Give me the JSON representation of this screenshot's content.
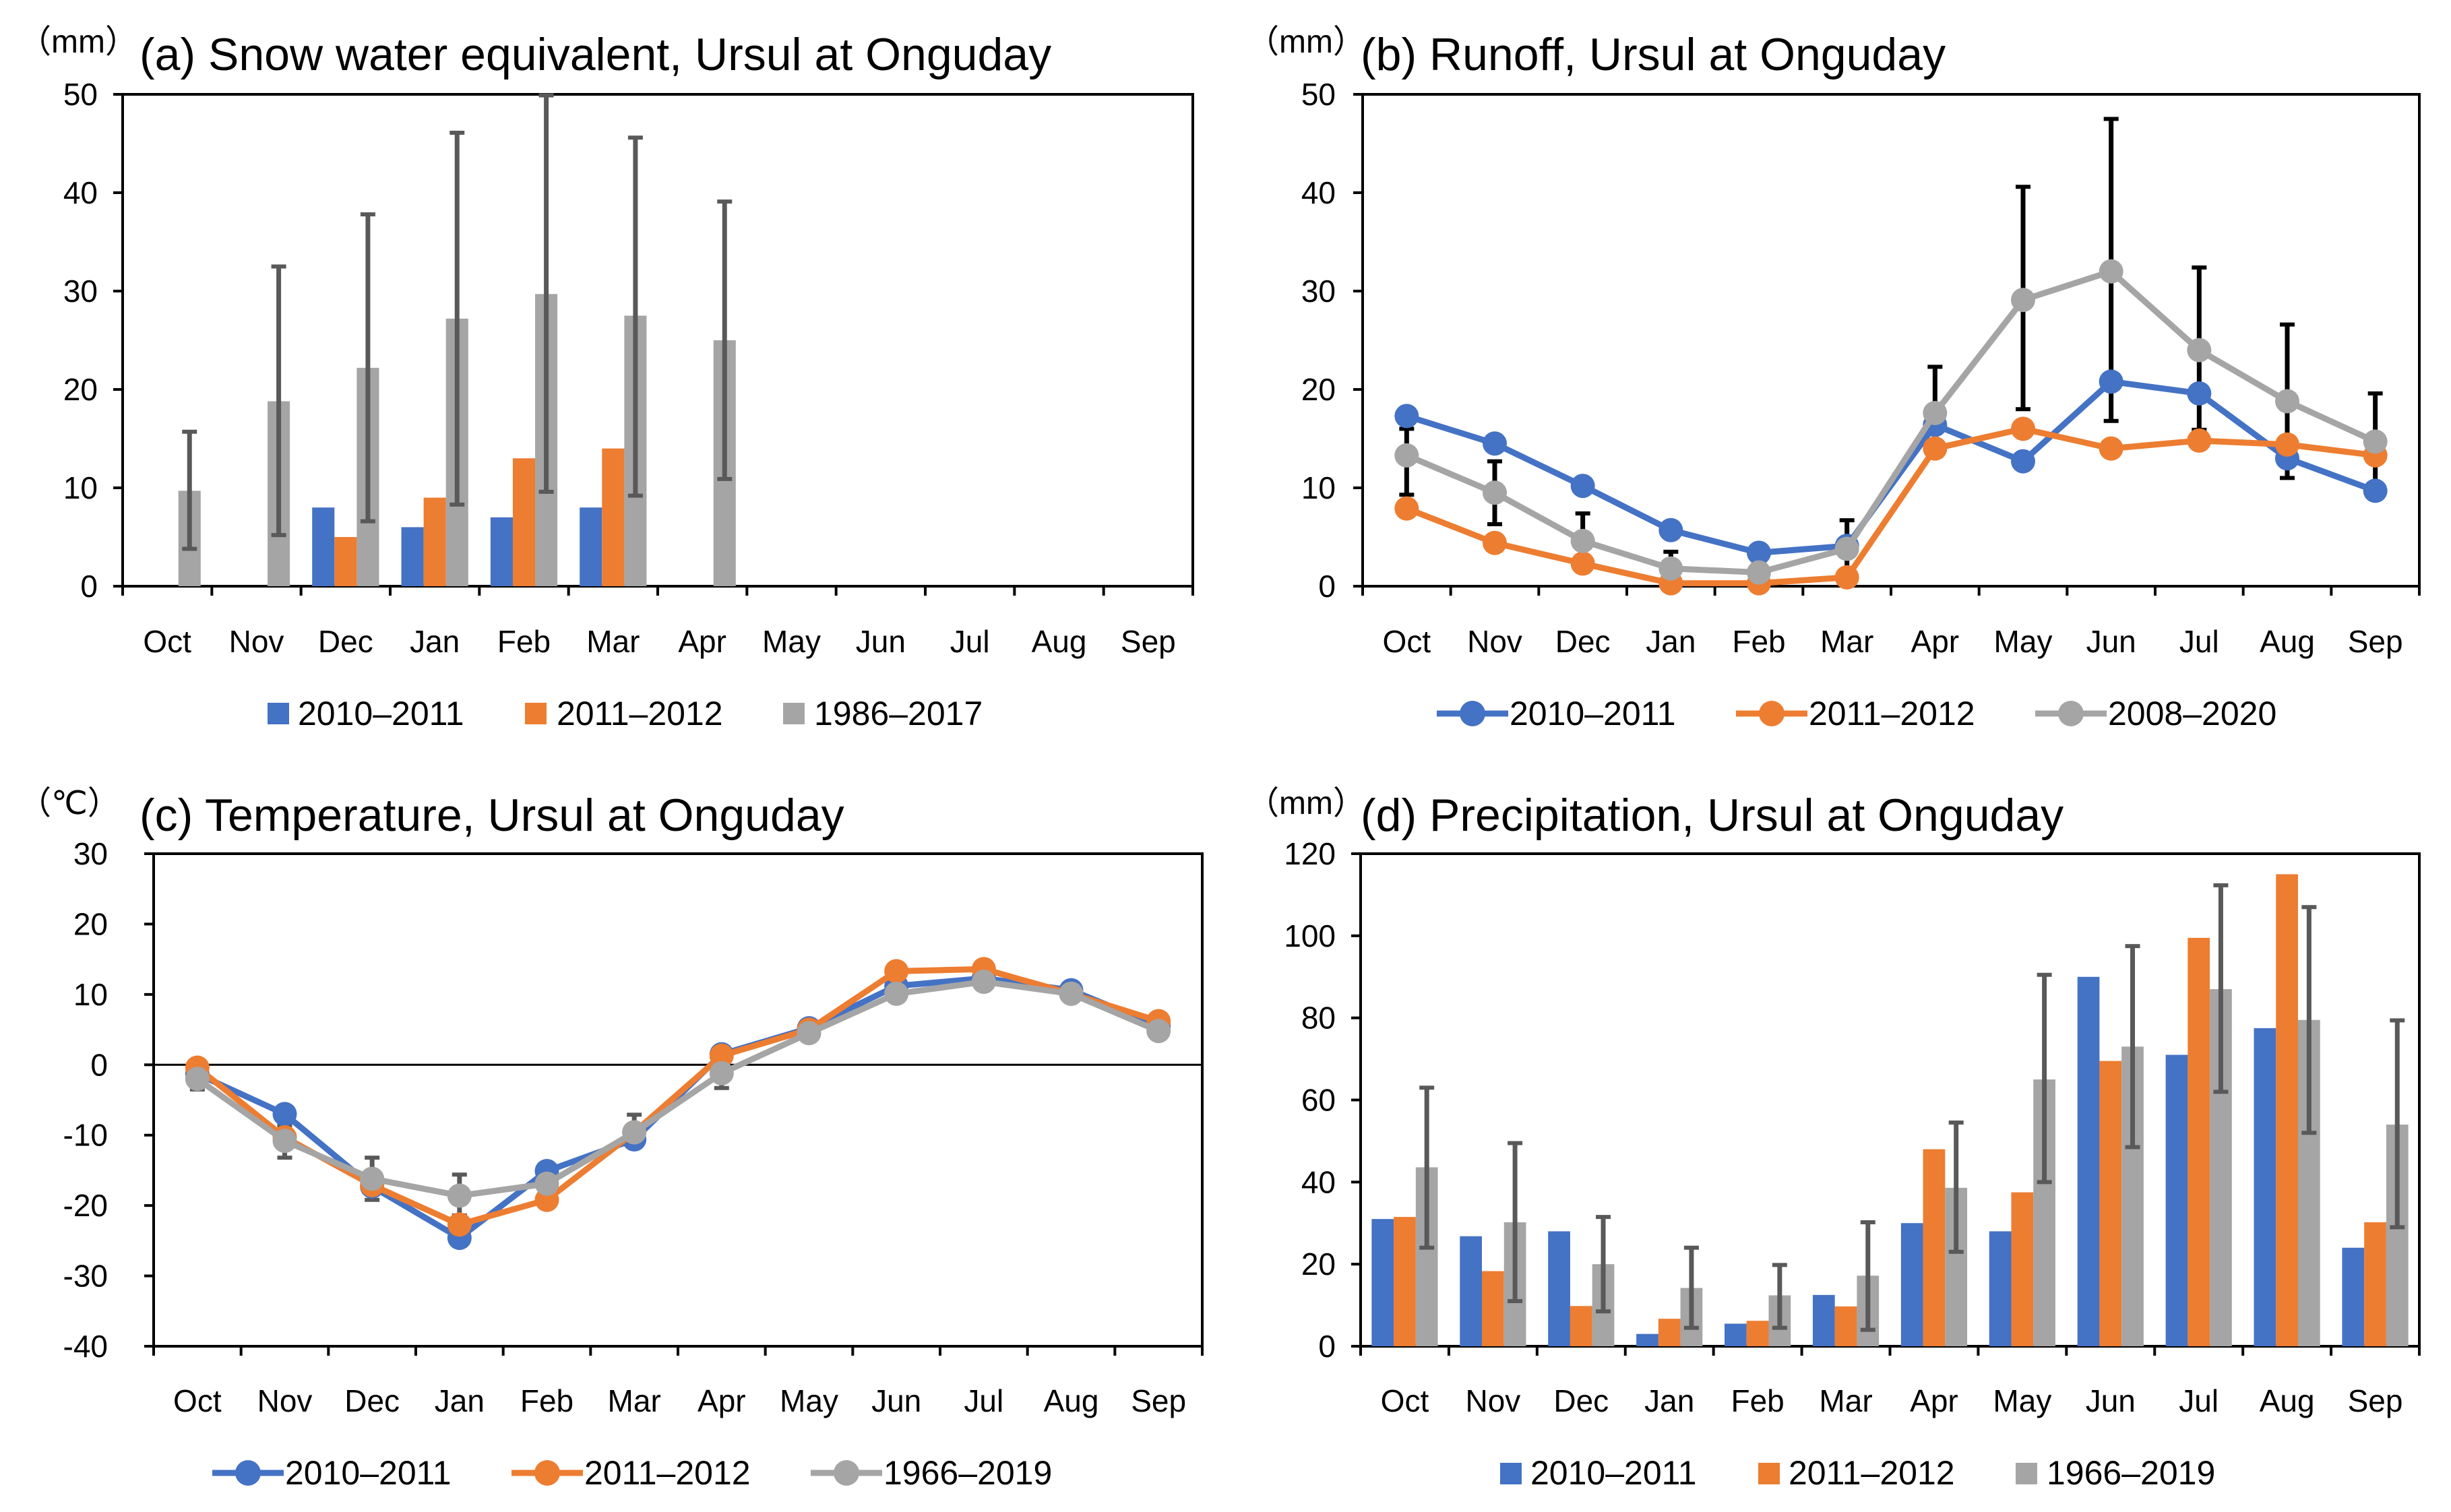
{
  "figure": {
    "colors": {
      "blue": "#4472C4",
      "orange": "#ED7D31",
      "gray": "#A5A5A5",
      "err_dark": "#595959",
      "err_black": "#000000"
    }
  },
  "chart_data": [
    {
      "id": "a",
      "type": "bar",
      "title": "(a) Snow water equivalent, Ursul at Onguday",
      "unit": "（mm）",
      "categories": [
        "Oct",
        "Nov",
        "Dec",
        "Jan",
        "Feb",
        "Mar",
        "Apr",
        "May",
        "Jun",
        "Jul",
        "Aug",
        "Sep"
      ],
      "ylim": [
        0,
        50
      ],
      "yticks": [
        0,
        10,
        20,
        30,
        40,
        50
      ],
      "series": [
        {
          "name": "2010–2011",
          "color": "#4472C4",
          "values": [
            null,
            null,
            8,
            6,
            7,
            8,
            null,
            null,
            null,
            null,
            null,
            null
          ]
        },
        {
          "name": "2011–2012",
          "color": "#ED7D31",
          "values": [
            null,
            null,
            5,
            9,
            13,
            14,
            null,
            null,
            null,
            null,
            null,
            null
          ]
        },
        {
          "name": "1986–2017",
          "color": "#A5A5A5",
          "values": [
            9.7,
            18.8,
            22.2,
            27.2,
            29.7,
            27.5,
            25,
            null,
            null,
            null,
            null,
            null
          ],
          "err_low": [
            3.8,
            5.2,
            6.6,
            8.3,
            9.6,
            9.2,
            10.9,
            null,
            null,
            null,
            null,
            null
          ],
          "err_high": [
            15.7,
            32.5,
            37.8,
            46.1,
            49.9,
            45.6,
            39.1,
            null,
            null,
            null,
            null,
            null
          ]
        }
      ],
      "err_color": "#595959"
    },
    {
      "id": "b",
      "type": "line",
      "title": "(b) Runoff, Ursul at Onguday",
      "unit": "（mm）",
      "categories": [
        "Oct",
        "Nov",
        "Dec",
        "Jan",
        "Feb",
        "Mar",
        "Apr",
        "May",
        "Jun",
        "Jul",
        "Aug",
        "Sep"
      ],
      "ylim": [
        0,
        50
      ],
      "yticks": [
        0,
        10,
        20,
        30,
        40,
        50
      ],
      "series": [
        {
          "name": "2010–2011",
          "color": "#4472C4",
          "values": [
            17.3,
            14.5,
            10.2,
            5.7,
            3.4,
            4.1,
            16.4,
            12.7,
            20.8,
            19.6,
            13.0,
            9.7
          ]
        },
        {
          "name": "2011–2012",
          "color": "#ED7D31",
          "values": [
            7.9,
            4.4,
            2.3,
            0.3,
            0.3,
            0.9,
            14.0,
            16.0,
            14.0,
            14.8,
            14.4,
            13.3
          ]
        },
        {
          "name": "2008–2020",
          "color": "#A5A5A5",
          "values": [
            13.3,
            9.5,
            4.6,
            1.8,
            1.4,
            3.8,
            17.6,
            29.1,
            32.0,
            24.0,
            18.8,
            14.7
          ],
          "err_low": [
            9.3,
            6.3,
            1.9,
            0.1,
            0.4,
            1.2,
            13.2,
            18.0,
            16.8,
            15.9,
            11.0,
            9.9
          ],
          "err_high": [
            16.0,
            12.7,
            7.4,
            3.5,
            2.4,
            6.7,
            22.3,
            40.6,
            47.5,
            32.4,
            26.6,
            19.6
          ]
        }
      ],
      "err_color": "#000000"
    },
    {
      "id": "c",
      "type": "line",
      "title": "(c) Temperature, Ursul at Onguday",
      "unit": "（℃）",
      "categories": [
        "Oct",
        "Nov",
        "Dec",
        "Jan",
        "Feb",
        "Mar",
        "Apr",
        "May",
        "Jun",
        "Jul",
        "Aug",
        "Sep"
      ],
      "ylim": [
        -40,
        30
      ],
      "yticks": [
        -40,
        -30,
        -20,
        -10,
        0,
        10,
        20,
        30
      ],
      "series": [
        {
          "name": "2010–2011",
          "color": "#4472C4",
          "values": [
            -1.3,
            -7.0,
            -17.3,
            -24.6,
            -15.1,
            -10.6,
            1.5,
            5.2,
            11.2,
            12.3,
            10.6,
            5.5
          ]
        },
        {
          "name": "2011–2012",
          "color": "#ED7D31",
          "values": [
            -0.4,
            -10.3,
            -17.1,
            -22.7,
            -19.2,
            -9.6,
            1.3,
            5.0,
            13.3,
            13.6,
            10.1,
            6.2
          ]
        },
        {
          "name": "1966–2019",
          "color": "#A5A5A5",
          "values": [
            -2.0,
            -10.8,
            -16.2,
            -18.6,
            -16.9,
            -9.6,
            -1.2,
            4.5,
            10.1,
            11.8,
            10.1,
            4.8
          ],
          "err_low": [
            -3.5,
            -13.2,
            -19.2,
            -21.4,
            -18.5,
            -11.6,
            -3.3,
            3.6,
            9.2,
            10.8,
            9.3,
            3.8
          ],
          "err_high": [
            -0.8,
            -8.6,
            -13.2,
            -15.6,
            -14.9,
            -7.1,
            0.9,
            5.8,
            11.5,
            12.9,
            11.0,
            5.9
          ]
        }
      ],
      "err_color": "#595959"
    },
    {
      "id": "d",
      "type": "bar",
      "title": "(d) Precipitation, Ursul at Onguday",
      "unit": "（mm）",
      "categories": [
        "Oct",
        "Nov",
        "Dec",
        "Jan",
        "Feb",
        "Mar",
        "Apr",
        "May",
        "Jun",
        "Jul",
        "Aug",
        "Sep"
      ],
      "ylim": [
        0,
        120
      ],
      "yticks": [
        0,
        20,
        40,
        60,
        80,
        100,
        120
      ],
      "series": [
        {
          "name": "2010–2011",
          "color": "#4472C4",
          "values": [
            31,
            26.8,
            28,
            3,
            5.5,
            12.5,
            30,
            28,
            90,
            71,
            77.5,
            24
          ]
        },
        {
          "name": "2011–2012",
          "color": "#ED7D31",
          "values": [
            31.5,
            18.3,
            9.8,
            6.7,
            6.2,
            9.7,
            48,
            37.5,
            69.5,
            99.5,
            115,
            30.2
          ]
        },
        {
          "name": "1966–2019",
          "color": "#A5A5A5",
          "values": [
            43.6,
            30.2,
            20,
            14.2,
            12.4,
            17.2,
            38.6,
            65,
            73,
            87,
            79.5,
            54
          ],
          "err_low": [
            24.0,
            11.0,
            8.5,
            4.5,
            4.5,
            4.0,
            23.0,
            40.0,
            48.5,
            62.0,
            52.0,
            29.0
          ],
          "err_high": [
            63.0,
            49.5,
            31.5,
            24.0,
            19.8,
            30.2,
            54.5,
            90.5,
            97.5,
            112.3,
            107.0,
            79.4
          ]
        }
      ],
      "err_color": "#595959"
    }
  ]
}
